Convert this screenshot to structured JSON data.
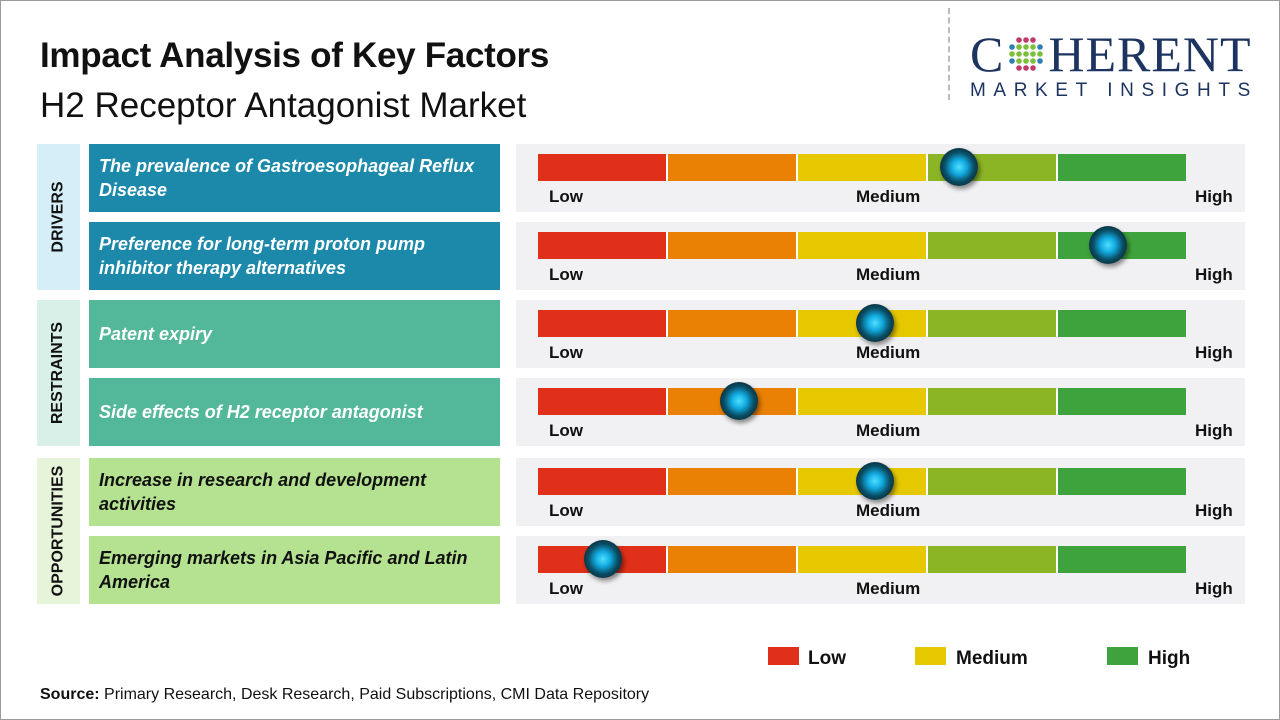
{
  "header": {
    "title": "Impact Analysis of Key Factors",
    "subtitle": "H2 Receptor Antagonist Market"
  },
  "logo": {
    "line1_left": "C",
    "line1_right": "HERENT",
    "line2": "MARKET INSIGHTS"
  },
  "colors": {
    "low": "#e03019",
    "low_medium": "#ea8004",
    "medium": "#e6c800",
    "medium_high": "#8cb526",
    "high": "#3fa33d",
    "drivers": "#1c89ab",
    "drivers_light": "#d5eef8",
    "restraints": "#53b899",
    "restraints_light": "#d8f0e8",
    "opportunities": "#b5e290",
    "opportunities_light": "#e6f5da"
  },
  "scale_labels": {
    "low": "Low",
    "medium": "Medium",
    "high": "High"
  },
  "chart_data": {
    "type": "gauge-bar",
    "scale": [
      "Low",
      "Medium",
      "High"
    ],
    "categories": [
      {
        "name": "DRIVERS",
        "factors": [
          {
            "label": "The prevalence of Gastroesophageal Reflux Disease",
            "impact": 0.65
          },
          {
            "label": "Preference for long-term proton pump inhibitor therapy alternatives",
            "impact": 0.88
          }
        ]
      },
      {
        "name": "RESTRAINTS",
        "factors": [
          {
            "label": "Patent expiry",
            "impact": 0.52
          },
          {
            "label": "Side effects of H2 receptor antagonist",
            "impact": 0.31
          }
        ]
      },
      {
        "name": "OPPORTUNITIES",
        "factors": [
          {
            "label": "Increase in research and development activities",
            "impact": 0.52
          },
          {
            "label": "Emerging markets in Asia Pacific and Latin America",
            "impact": 0.1
          }
        ]
      }
    ]
  },
  "legend": [
    {
      "label": "Low",
      "color": "#e03019"
    },
    {
      "label": "Medium",
      "color": "#e6c800"
    },
    {
      "label": "High",
      "color": "#3fa33d"
    }
  ],
  "source": {
    "prefix": "Source:",
    "text": " Primary Research, Desk Research, Paid Subscriptions, CMI Data Repository"
  }
}
